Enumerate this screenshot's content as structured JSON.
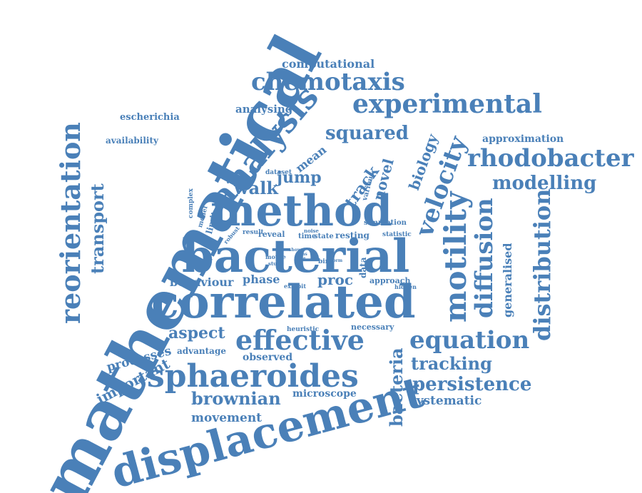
{
  "color": "#4a80b8",
  "words": {
    "mathematical": "mathematical",
    "displacement": "displacement",
    "sphaeroides": "sphaeroides",
    "correlated": "correlated",
    "bacterial": "bacterial",
    "method": "method",
    "analysis": "analysis",
    "effective": "effective",
    "motility": "motility",
    "chemotaxis": "chemotaxis",
    "experimental": "experimental",
    "rhodobacter": "rhodobacter",
    "reorientation": "reorientation",
    "brownian": "brownian",
    "equation": "equation",
    "velocity": "velocity",
    "diffusion": "diffusion",
    "distribution": "distribution",
    "modelling": "modelling",
    "persistence": "persistence",
    "tracking": "tracking",
    "bacteria": "bacteria",
    "squared": "squared",
    "transport": "transport",
    "important": "important",
    "processes": "processes",
    "aspect": "aspect",
    "walk": "walk",
    "jump": "jump",
    "track": "track",
    "novel": "novel",
    "biology": "biology",
    "mean": "mean",
    "generalised": "generalised",
    "movement": "movement",
    "systematic": "systematic",
    "microscope": "microscope",
    "observed": "observed",
    "advantage": "advantage",
    "behaviour": "behaviour",
    "phase": "phase",
    "proc": "proc",
    "computational": "computational",
    "analysing": "analysing",
    "escherichia": "escherichia",
    "availability": "availability",
    "approximation": "approximation",
    "simulation": "simulation",
    "dataset": "dataset",
    "various": "various",
    "complex": "complex",
    "model": "model",
    "limit": "limit",
    "robust": "robust",
    "result": "result",
    "reveal": "reveal",
    "noise": "noise",
    "time": "time",
    "state": "state",
    "resting": "resting",
    "statistic": "statistic",
    "show": "show",
    "bias": "bias",
    "rate": "rate",
    "motile": "motile",
    "study": "study",
    "bird": "bird",
    "form": "form",
    "data": "data",
    "exhibit": "exhibit",
    "approach": "approach",
    "hidden": "hidden",
    "heuristic": "heuristic",
    "necessary": "necessary"
  }
}
